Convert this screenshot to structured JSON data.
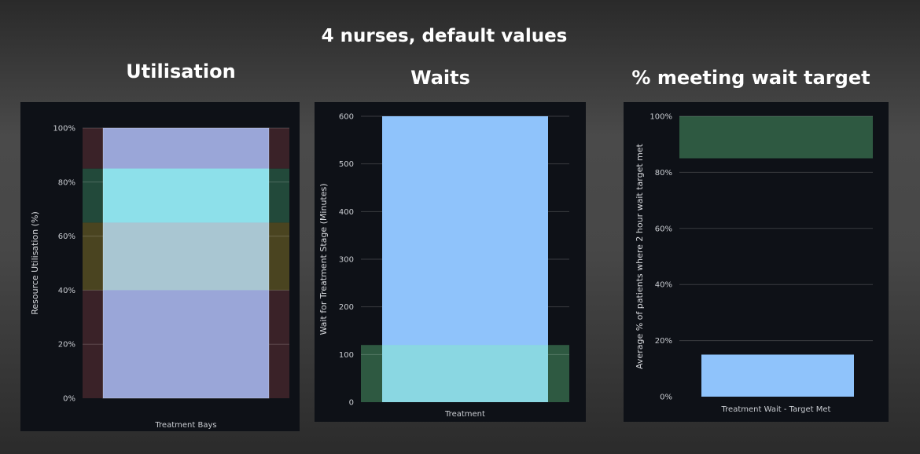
{
  "heading": "4 nurses, default values",
  "chart_data": [
    {
      "id": "utilisation",
      "title": "Utilisation",
      "type": "bar",
      "categories": [
        "Treatment Bays"
      ],
      "series": [
        {
          "values": [
            100
          ],
          "color": "#9aa6d8"
        }
      ],
      "xlabel": "Treatment Bays",
      "ylabel": "Resource Utilisation (%)",
      "ylim": [
        0,
        100
      ],
      "yticks": [
        0,
        20,
        40,
        60,
        80,
        100
      ],
      "tick_format": "percent",
      "bands": [
        {
          "from": 0,
          "to": 40,
          "color": "#3a2228"
        },
        {
          "from": 40,
          "to": 65,
          "color": "#4a4420"
        },
        {
          "from": 65,
          "to": 85,
          "color": "#22493a"
        },
        {
          "from": 85,
          "to": 100,
          "color": "#3a2228"
        }
      ],
      "overlay_colors": [
        {
          "from": 40,
          "to": 65,
          "color": "#a9c6d2"
        },
        {
          "from": 65,
          "to": 85,
          "color": "#8de0ea"
        }
      ],
      "grid": true
    },
    {
      "id": "waits",
      "title": "Waits",
      "type": "bar",
      "categories": [
        "Treatment"
      ],
      "series": [
        {
          "values": [
            600
          ],
          "color": "#8fc3fb"
        }
      ],
      "xlabel": "Treatment",
      "ylabel": "Wait for Treatment Stage (Minutes)",
      "ylim": [
        0,
        600
      ],
      "yticks": [
        0,
        100,
        200,
        300,
        400,
        500,
        600
      ],
      "tick_format": "number",
      "bands": [
        {
          "from": 0,
          "to": 120,
          "color": "#2e5941"
        }
      ],
      "overlay_colors": [
        {
          "from": 0,
          "to": 120,
          "color": "#8ad7e2"
        }
      ],
      "grid": true
    },
    {
      "id": "wait-target",
      "title": "% meeting wait target",
      "type": "bar",
      "categories": [
        "Treatment Wait - Target Met"
      ],
      "series": [
        {
          "values": [
            15
          ],
          "color": "#8fc3fb"
        }
      ],
      "xlabel": "Treatment Wait - Target Met",
      "ylabel": "Average % of patients where 2 hour wait target met",
      "ylim": [
        0,
        100
      ],
      "yticks": [
        0,
        20,
        40,
        60,
        80,
        100
      ],
      "tick_format": "percent",
      "bands": [
        {
          "from": 85,
          "to": 100,
          "color": "#2e5941"
        }
      ],
      "overlay_colors": [],
      "grid": true
    }
  ]
}
